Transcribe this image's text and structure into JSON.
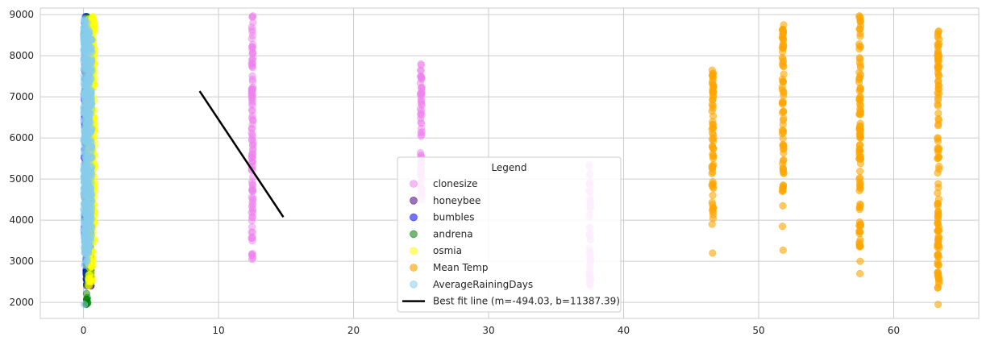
{
  "chart_data": {
    "type": "scatter",
    "xlim": [
      -3.2,
      66.3
    ],
    "ylim": [
      1610,
      9160
    ],
    "xticks": [
      0,
      10,
      20,
      30,
      40,
      50,
      60
    ],
    "xtick_labels": [
      "0",
      "10",
      "20",
      "30",
      "40",
      "50",
      "60"
    ],
    "yticks": [
      2000,
      3000,
      4000,
      5000,
      6000,
      7000,
      8000,
      9000
    ],
    "ytick_labels": [
      "2000",
      "3000",
      "4000",
      "5000",
      "6000",
      "7000",
      "8000",
      "9000"
    ],
    "grid": true,
    "legend": {
      "title": "Legend",
      "placement": "lower center",
      "entries": [
        "clonesize",
        "honeybee",
        "bumbles",
        "andrena",
        "osmia",
        "Mean Temp",
        "AverageRainingDays",
        "Best fit line (m=-494.03, b=11387.39)"
      ]
    },
    "series": [
      {
        "name": "clonesize",
        "color": "#ee82ee",
        "alpha": 0.5,
        "groups": [
          {
            "x": 12.5,
            "ymin": 3050,
            "ymax": 8970,
            "outliers": [
              3500,
              3150
            ]
          },
          {
            "x": 25.0,
            "ymin": 4500,
            "ymax": 7800,
            "outliers": []
          },
          {
            "x": 37.5,
            "ymin": 2400,
            "ymax": 5350,
            "outliers": []
          }
        ]
      },
      {
        "name": "honeybee",
        "color": "#4b0082",
        "alpha": 0.5,
        "groups": [
          {
            "x": 0.25,
            "ymin": 2400,
            "ymax": 8950,
            "outliers": []
          },
          {
            "x": 0.5,
            "ymin": 2400,
            "ymax": 8900,
            "outliers": [
              2850,
              2650
            ]
          }
        ]
      },
      {
        "name": "bumbles",
        "color": "#0000ff",
        "alpha": 0.5,
        "groups": [
          {
            "x": 0.12,
            "ymin": 3500,
            "ymax": 8950,
            "outliers": []
          },
          {
            "x": 0.25,
            "ymin": 2500,
            "ymax": 8950,
            "outliers": []
          }
        ]
      },
      {
        "name": "andrena",
        "color": "#008000",
        "alpha": 0.5,
        "groups": [
          {
            "x": 0.25,
            "ymin": 1950,
            "ymax": 8950,
            "outliers": []
          },
          {
            "x": 0.5,
            "ymin": 2500,
            "ymax": 8800,
            "outliers": []
          }
        ]
      },
      {
        "name": "osmia",
        "color": "#ffff00",
        "alpha": 0.5,
        "groups": [
          {
            "x": 0.4,
            "ymin": 2400,
            "ymax": 8900,
            "outliers": []
          },
          {
            "x": 0.63,
            "ymin": 2500,
            "ymax": 8950,
            "outliers": []
          },
          {
            "x": 0.75,
            "ymin": 3500,
            "ymax": 8900,
            "outliers": []
          }
        ]
      },
      {
        "name": "Mean Temp",
        "color": "#ffa500",
        "alpha": 0.6,
        "groups": [
          {
            "x": 46.6,
            "ymin": 3900,
            "ymax": 7650,
            "outliers": [
              3200
            ]
          },
          {
            "x": 51.8,
            "ymin": 4700,
            "ymax": 8750,
            "outliers": [
              4350,
              3850,
              3270
            ]
          },
          {
            "x": 57.5,
            "ymin": 3350,
            "ymax": 8970,
            "outliers": [
              3000,
              2700
            ]
          },
          {
            "x": 63.3,
            "ymin": 2350,
            "ymax": 8600,
            "outliers": [
              1950
            ]
          }
        ]
      },
      {
        "name": "AverageRainingDays",
        "color": "#87ceeb",
        "alpha": 0.5,
        "groups": [
          {
            "x": 0.06,
            "ymin": 3300,
            "ymax": 8900,
            "outliers": [
              1950
            ]
          },
          {
            "x": 0.1,
            "ymin": 2900,
            "ymax": 8850,
            "outliers": []
          },
          {
            "x": 0.26,
            "ymin": 3000,
            "ymax": 8800,
            "outliers": []
          },
          {
            "x": 0.39,
            "ymin": 3200,
            "ymax": 8600,
            "outliers": []
          },
          {
            "x": 0.56,
            "ymin": 3500,
            "ymax": 8400,
            "outliers": []
          }
        ]
      }
    ],
    "fit_line": {
      "name": "Best fit line (m=-494.03, b=11387.39)",
      "m": -494.03,
      "b": 11387.39,
      "x_range": [
        8.6,
        14.8
      ],
      "color": "#000000"
    }
  }
}
